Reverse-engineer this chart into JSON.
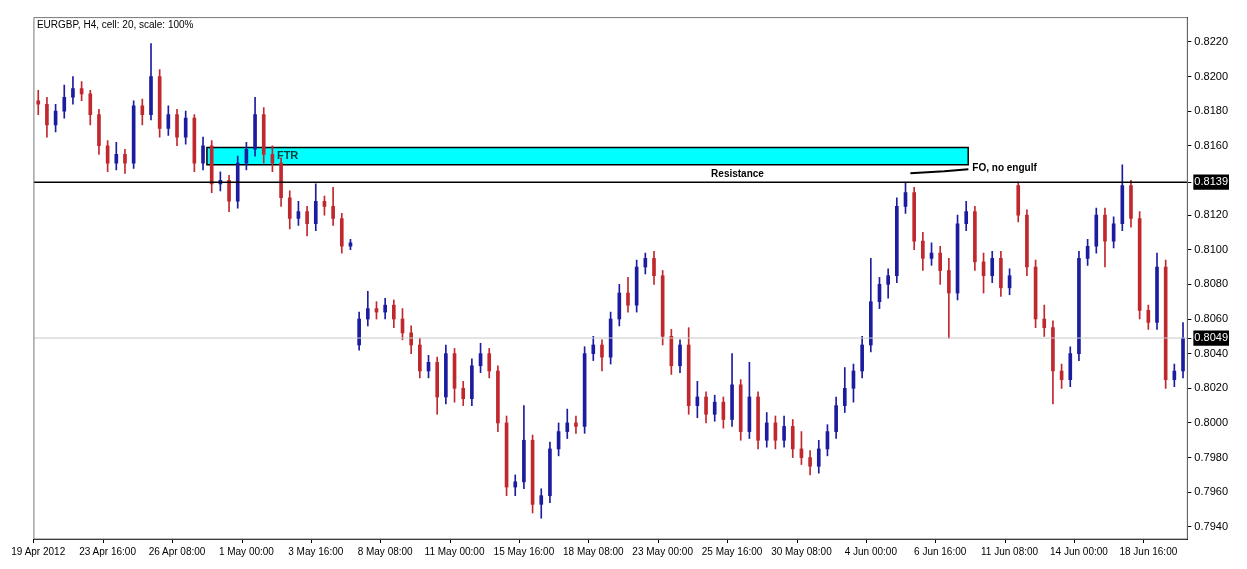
{
  "chart_data": {
    "type": "candlestick",
    "title": "EURGBP, H4, cell: 20, scale: 100%",
    "colors": [
      "#c0282e",
      "#c0282e",
      "#1c1ca0",
      "#1c1ca0",
      "#1c1ca0",
      "#c0282e",
      "#c0282e",
      "#c0282e",
      "#c0282e",
      "#1c1ca0",
      "#c0282e",
      "#1c1ca0",
      "#c0282e",
      "#1c1ca0",
      "#c0282e",
      "#1c1ca0",
      "#c0282e",
      "#1c1ca0",
      "#c0282e",
      "#1c1ca0",
      "#c0282e",
      "#1c1ca0",
      "#c0282e",
      "#1c1ca0",
      "#1c1ca0",
      "#1c1ca0",
      "#c0282e",
      "#c0282e",
      "#c0282e",
      "#c0282e",
      "#1c1ca0",
      "#c0282e",
      "#1c1ca0",
      "#c0282e",
      "#c0282e",
      "#c0282e",
      "#1c1ca0",
      "#1c1ca0",
      "#1c1ca0",
      "#c0282e",
      "#1c1ca0",
      "#c0282e",
      "#c0282e",
      "#c0282e",
      "#c0282e",
      "#1c1ca0",
      "#c0282e",
      "#1c1ca0",
      "#c0282e",
      "#c0282e",
      "#1c1ca0",
      "#1c1ca0",
      "#c0282e",
      "#c0282e",
      "#c0282e",
      "#1c1ca0",
      "#1c1ca0",
      "#c0282e",
      "#1c1ca0",
      "#1c1ca0",
      "#1c1ca0",
      "#1c1ca0",
      "#c0282e",
      "#1c1ca0",
      "#1c1ca0",
      "#c0282e",
      "#1c1ca0",
      "#1c1ca0",
      "#c0282e",
      "#1c1ca0",
      "#1c1ca0",
      "#c0282e",
      "#c0282e",
      "#c0282e",
      "#1c1ca0",
      "#c0282e",
      "#1c1ca0",
      "#c0282e",
      "#1c1ca0",
      "#c0282e",
      "#1c1ca0",
      "#c0282e",
      "#1c1ca0",
      "#c0282e",
      "#1c1ca0",
      "#c0282e",
      "#1c1ca0",
      "#c0282e",
      "#c0282e",
      "#c0282e",
      "#1c1ca0",
      "#1c1ca0",
      "#1c1ca0",
      "#1c1ca0",
      "#1c1ca0",
      "#1c1ca0",
      "#1c1ca0",
      "#1c1ca0",
      "#1c1ca0",
      "#1c1ca0",
      "#1c1ca0",
      "#c0282e",
      "#c0282e",
      "#1c1ca0",
      "#c0282e",
      "#c0282e",
      "#1c1ca0",
      "#1c1ca0",
      "#c0282e",
      "#c0282e",
      "#1c1ca0",
      "#c0282e",
      "#1c1ca0",
      "#c0282e",
      "#c0282e",
      "#c0282e",
      "#c0282e",
      "#c0282e",
      "#c0282e",
      "#1c1ca0",
      "#1c1ca0",
      "#1c1ca0",
      "#1c1ca0",
      "#c0282e",
      "#1c1ca0",
      "#1c1ca0",
      "#c0282e",
      "#c0282e",
      "#c0282e",
      "#1c1ca0",
      "#c0282e",
      "#1c1ca0",
      "#1c1ca0"
    ],
    "categories": [
      "19 Apr 2012",
      null,
      null,
      null,
      null,
      null,
      null,
      null,
      "23 Apr 16:00",
      null,
      null,
      null,
      null,
      null,
      null,
      null,
      "26 Apr 08:00",
      null,
      null,
      null,
      null,
      null,
      null,
      null,
      "1 May 00:00",
      null,
      null,
      null,
      null,
      null,
      null,
      null,
      "3 May 16:00",
      null,
      null,
      null,
      null,
      null,
      null,
      null,
      "8 May 08:00",
      null,
      null,
      null,
      null,
      null,
      null,
      null,
      "11 May 00:00",
      null,
      null,
      null,
      null,
      null,
      null,
      null,
      "15 May 16:00",
      null,
      null,
      null,
      null,
      null,
      null,
      null,
      "18 May 08:00",
      null,
      null,
      null,
      null,
      null,
      null,
      null,
      "23 May 00:00",
      null,
      null,
      null,
      null,
      null,
      null,
      null,
      "25 May 16:00",
      null,
      null,
      null,
      null,
      null,
      null,
      null,
      "30 May 08:00",
      null,
      null,
      null,
      null,
      null,
      null,
      null,
      "4 Jun 00:00",
      null,
      null,
      null,
      null,
      null,
      null,
      null,
      "6 Jun 16:00",
      null,
      null,
      null,
      null,
      null,
      null,
      null,
      "11 Jun 08:00",
      null,
      null,
      null,
      null,
      null,
      null,
      null,
      "14 Jun 00:00",
      null,
      null,
      null,
      null,
      null,
      null,
      null,
      "18 Jun 16:00",
      null,
      null,
      null,
      null
    ],
    "ohlc": [
      [
        0.8186,
        0.8192,
        0.8178,
        0.8184
      ],
      [
        0.8184,
        0.8188,
        0.8165,
        0.8172
      ],
      [
        0.8172,
        0.8184,
        0.8168,
        0.818
      ],
      [
        0.818,
        0.8195,
        0.8176,
        0.8188
      ],
      [
        0.8188,
        0.82,
        0.8184,
        0.8193
      ],
      [
        0.8193,
        0.8197,
        0.8186,
        0.819
      ],
      [
        0.819,
        0.8192,
        0.8172,
        0.8178
      ],
      [
        0.8178,
        0.8181,
        0.8155,
        0.816
      ],
      [
        0.816,
        0.8163,
        0.8145,
        0.815
      ],
      [
        0.815,
        0.8162,
        0.8146,
        0.8155
      ],
      [
        0.8155,
        0.8158,
        0.8144,
        0.815
      ],
      [
        0.815,
        0.8186,
        0.8147,
        0.8183
      ],
      [
        0.8183,
        0.8187,
        0.8172,
        0.8178
      ],
      [
        0.8178,
        0.8219,
        0.8175,
        0.82
      ],
      [
        0.82,
        0.8204,
        0.8165,
        0.817
      ],
      [
        0.817,
        0.8183,
        0.8166,
        0.8178
      ],
      [
        0.8178,
        0.8181,
        0.816,
        0.8165
      ],
      [
        0.8165,
        0.818,
        0.8161,
        0.8176
      ],
      [
        0.8176,
        0.8178,
        0.8145,
        0.815
      ],
      [
        0.815,
        0.8165,
        0.8146,
        0.816
      ],
      [
        0.816,
        0.8163,
        0.8133,
        0.8138
      ],
      [
        0.8138,
        0.8145,
        0.8134,
        0.814
      ],
      [
        0.814,
        0.8143,
        0.8122,
        0.8128
      ],
      [
        0.8128,
        0.8154,
        0.8124,
        0.815
      ],
      [
        0.815,
        0.8162,
        0.8146,
        0.8158
      ],
      [
        0.8158,
        0.8188,
        0.8154,
        0.8178
      ],
      [
        0.8178,
        0.8182,
        0.815,
        0.8155
      ],
      [
        0.8155,
        0.816,
        0.8145,
        0.815
      ],
      [
        0.815,
        0.8153,
        0.8125,
        0.813
      ],
      [
        0.813,
        0.8134,
        0.8112,
        0.8118
      ],
      [
        0.8118,
        0.8128,
        0.8114,
        0.8122
      ],
      [
        0.8122,
        0.8125,
        0.8108,
        0.8115
      ],
      [
        0.8115,
        0.8138,
        0.8111,
        0.8128
      ],
      [
        0.8128,
        0.8131,
        0.812,
        0.8125
      ],
      [
        0.8125,
        0.8136,
        0.8114,
        0.8118
      ],
      [
        0.8118,
        0.8121,
        0.8098,
        0.8102
      ],
      [
        0.8102,
        0.8106,
        0.81,
        0.8104
      ],
      [
        0.8045,
        0.8064,
        0.8042,
        0.806
      ],
      [
        0.806,
        0.8076,
        0.8056,
        0.8066
      ],
      [
        0.8066,
        0.807,
        0.806,
        0.8064
      ],
      [
        0.8064,
        0.8072,
        0.806,
        0.8068
      ],
      [
        0.8068,
        0.8071,
        0.8055,
        0.806
      ],
      [
        0.806,
        0.8066,
        0.8048,
        0.8052
      ],
      [
        0.8052,
        0.8056,
        0.804,
        0.8045
      ],
      [
        0.8045,
        0.8049,
        0.8026,
        0.803
      ],
      [
        0.803,
        0.8039,
        0.8026,
        0.8035
      ],
      [
        0.8035,
        0.8038,
        0.8005,
        0.8015
      ],
      [
        0.8015,
        0.8045,
        0.8011,
        0.804
      ],
      [
        0.804,
        0.8043,
        0.8012,
        0.802
      ],
      [
        0.802,
        0.8024,
        0.801,
        0.8014
      ],
      [
        0.8014,
        0.8037,
        0.801,
        0.8033
      ],
      [
        0.8033,
        0.8046,
        0.8029,
        0.804
      ],
      [
        0.804,
        0.8043,
        0.8026,
        0.803
      ],
      [
        0.803,
        0.8033,
        0.7995,
        0.8
      ],
      [
        0.8,
        0.8004,
        0.7958,
        0.7963
      ],
      [
        0.7963,
        0.797,
        0.7958,
        0.7966
      ],
      [
        0.7966,
        0.801,
        0.7962,
        0.799
      ],
      [
        0.799,
        0.7993,
        0.7948,
        0.7953
      ],
      [
        0.7953,
        0.7962,
        0.7945,
        0.7958
      ],
      [
        0.7958,
        0.7989,
        0.7954,
        0.7985
      ],
      [
        0.7985,
        0.8,
        0.7981,
        0.7995
      ],
      [
        0.7995,
        0.8008,
        0.7991,
        0.8
      ],
      [
        0.8,
        0.8004,
        0.7994,
        0.7998
      ],
      [
        0.7998,
        0.8044,
        0.7994,
        0.804
      ],
      [
        0.804,
        0.805,
        0.8036,
        0.8045
      ],
      [
        0.8045,
        0.8048,
        0.803,
        0.8038
      ],
      [
        0.8038,
        0.8064,
        0.8034,
        0.806
      ],
      [
        0.806,
        0.808,
        0.8056,
        0.8075
      ],
      [
        0.8075,
        0.8084,
        0.8064,
        0.8068
      ],
      [
        0.8068,
        0.8094,
        0.8064,
        0.809
      ],
      [
        0.809,
        0.8098,
        0.8086,
        0.8095
      ],
      [
        0.8095,
        0.8099,
        0.808,
        0.8085
      ],
      [
        0.8085,
        0.8088,
        0.8045,
        0.805
      ],
      [
        0.805,
        0.8054,
        0.8028,
        0.8033
      ],
      [
        0.8033,
        0.8048,
        0.8029,
        0.8045
      ],
      [
        0.8045,
        0.8055,
        0.8005,
        0.801
      ],
      [
        0.801,
        0.8024,
        0.8003,
        0.8015
      ],
      [
        0.8015,
        0.8018,
        0.8,
        0.8005
      ],
      [
        0.8005,
        0.8016,
        0.8001,
        0.8012
      ],
      [
        0.8012,
        0.8015,
        0.7997,
        0.8002
      ],
      [
        0.8002,
        0.804,
        0.7998,
        0.8022
      ],
      [
        0.8022,
        0.8025,
        0.799,
        0.7995
      ],
      [
        0.7995,
        0.8035,
        0.7991,
        0.8015
      ],
      [
        0.8015,
        0.8018,
        0.7985,
        0.799
      ],
      [
        0.799,
        0.8006,
        0.7986,
        0.8
      ],
      [
        0.8,
        0.8004,
        0.7985,
        0.799
      ],
      [
        0.799,
        0.8004,
        0.7986,
        0.7998
      ],
      [
        0.7998,
        0.8002,
        0.798,
        0.7985
      ],
      [
        0.7985,
        0.7995,
        0.7976,
        0.798
      ],
      [
        0.798,
        0.7984,
        0.797,
        0.7975
      ],
      [
        0.7975,
        0.799,
        0.7971,
        0.7985
      ],
      [
        0.7985,
        0.7999,
        0.7981,
        0.7995
      ],
      [
        0.7995,
        0.8015,
        0.7991,
        0.801
      ],
      [
        0.801,
        0.8032,
        0.8006,
        0.802
      ],
      [
        0.802,
        0.8034,
        0.8012,
        0.803
      ],
      [
        0.803,
        0.805,
        0.8026,
        0.8045
      ],
      [
        0.8045,
        0.8095,
        0.8041,
        0.807
      ],
      [
        0.807,
        0.8084,
        0.8066,
        0.808
      ],
      [
        0.808,
        0.8089,
        0.8072,
        0.8085
      ],
      [
        0.8085,
        0.813,
        0.8081,
        0.8125
      ],
      [
        0.8125,
        0.8139,
        0.8121,
        0.8133
      ],
      [
        0.8133,
        0.8136,
        0.81,
        0.8105
      ],
      [
        0.8105,
        0.811,
        0.8088,
        0.8095
      ],
      [
        0.8095,
        0.8104,
        0.8091,
        0.8098
      ],
      [
        0.8098,
        0.8102,
        0.808,
        0.8088
      ],
      [
        0.8088,
        0.8095,
        0.8049,
        0.8075
      ],
      [
        0.8075,
        0.812,
        0.8071,
        0.8115
      ],
      [
        0.8115,
        0.8128,
        0.8111,
        0.8122
      ],
      [
        0.8122,
        0.8125,
        0.8088,
        0.8093
      ],
      [
        0.8093,
        0.8098,
        0.8075,
        0.8085
      ],
      [
        0.8085,
        0.8099,
        0.8081,
        0.8095
      ],
      [
        0.8095,
        0.8099,
        0.8073,
        0.8078
      ],
      [
        0.8078,
        0.8089,
        0.8074,
        0.8085
      ],
      [
        0.8137,
        0.8139,
        0.8116,
        0.812
      ],
      [
        0.812,
        0.8123,
        0.8085,
        0.809
      ],
      [
        0.809,
        0.8094,
        0.8055,
        0.806
      ],
      [
        0.806,
        0.8068,
        0.805,
        0.8055
      ],
      [
        0.8055,
        0.8059,
        0.8011,
        0.803
      ],
      [
        0.803,
        0.8034,
        0.802,
        0.8025
      ],
      [
        0.8025,
        0.8044,
        0.8021,
        0.804
      ],
      [
        0.804,
        0.8099,
        0.8036,
        0.8095
      ],
      [
        0.8095,
        0.8106,
        0.8091,
        0.8102
      ],
      [
        0.8102,
        0.8124,
        0.8098,
        0.812
      ],
      [
        0.812,
        0.8124,
        0.809,
        0.8105
      ],
      [
        0.8105,
        0.8119,
        0.8101,
        0.8115
      ],
      [
        0.8115,
        0.8149,
        0.8111,
        0.8137
      ],
      [
        0.8137,
        0.814,
        0.8113,
        0.8118
      ],
      [
        0.8118,
        0.8122,
        0.806,
        0.8065
      ],
      [
        0.8065,
        0.8068,
        0.8054,
        0.8058
      ],
      [
        0.8058,
        0.8098,
        0.8054,
        0.809
      ],
      [
        0.809,
        0.8094,
        0.802,
        0.8025
      ],
      [
        0.8025,
        0.8034,
        0.8021,
        0.803
      ],
      [
        0.803,
        0.8058,
        0.8026,
        0.8049
      ]
    ],
    "ylim": [
      0.7933,
      0.8234
    ],
    "yticks": [
      {
        "value": 0.794,
        "label": "0.7940"
      },
      {
        "value": 0.796,
        "label": "0.7960"
      },
      {
        "value": 0.798,
        "label": "0.7980"
      },
      {
        "value": 0.8,
        "label": "0.8000"
      },
      {
        "value": 0.802,
        "label": "0.8020"
      },
      {
        "value": 0.804,
        "label": "0.8040"
      },
      {
        "value": 0.8049,
        "label": "0.8049"
      },
      {
        "value": 0.806,
        "label": "0.8060"
      },
      {
        "value": 0.808,
        "label": "0.8080"
      },
      {
        "value": 0.81,
        "label": "0.8100"
      },
      {
        "value": 0.812,
        "label": "0.8120"
      },
      {
        "value": 0.8139,
        "label": "0.8139"
      },
      {
        "value": 0.816,
        "label": "0.8160"
      },
      {
        "value": 0.818,
        "label": "0.8180"
      },
      {
        "value": 0.82,
        "label": "0.8200"
      },
      {
        "value": 0.822,
        "label": "0.8220"
      }
    ],
    "ref_lines": [
      {
        "axis": "y",
        "value": 0.8139,
        "label": "Resistance",
        "color": "#000000"
      },
      {
        "axis": "y",
        "value": 0.8049,
        "color": "#c8c8c8"
      }
    ],
    "bands": [
      {
        "axis": "y",
        "from": 0.8149,
        "to": 0.8159,
        "label": "FTR",
        "color": "#00ffff"
      }
    ],
    "annotations": [
      "FO, no engulf"
    ],
    "grid": false,
    "legend": false
  }
}
